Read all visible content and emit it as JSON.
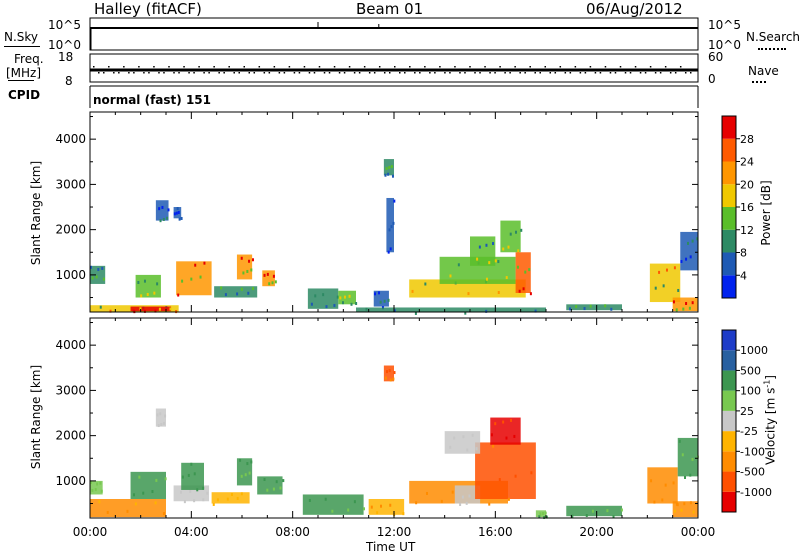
{
  "header": {
    "station": "Halley (fitACF)",
    "beam": "Beam 01",
    "date": "06/Aug/2012"
  },
  "sky_panel": {
    "left_label": "N.Sky",
    "right_label": "N.Search",
    "left_ticks": [
      "10^5",
      "10^0"
    ],
    "right_ticks": [
      "10^5",
      "10^0"
    ]
  },
  "freq_panel": {
    "left_label_1": "Freq.",
    "left_label_2": "[MHz]",
    "right_label": "Nave",
    "left_ticks": [
      "18",
      "8"
    ],
    "right_ticks": [
      "60",
      "0"
    ],
    "freq_value_mhz": 12,
    "nave_value": 26
  },
  "cpid_panel": {
    "label": "CPID",
    "mode_text": "normal (fast) 151"
  },
  "x_axis": {
    "title": "Time UT",
    "ticks": [
      "00:00",
      "04:00",
      "08:00",
      "12:00",
      "16:00",
      "20:00",
      "00:00"
    ]
  },
  "chart_data": [
    {
      "type": "heatmap",
      "name": "power",
      "xlabel": "Time UT",
      "ylabel": "Slant Range [km]",
      "x_range_hours": [
        0,
        24
      ],
      "ylim": [
        180,
        4600
      ],
      "y_ticks": [
        "1000",
        "2000",
        "3000",
        "4000"
      ],
      "colorbar": {
        "label": "Power [dB]",
        "ticks": [
          "4",
          "8",
          "12",
          "16",
          "20",
          "24",
          "28"
        ],
        "range": [
          0,
          32
        ],
        "colors": [
          "#0022ee",
          "#1e5ab4",
          "#2d8a64",
          "#5abe2a",
          "#f0c800",
          "#ff9600",
          "#ff5a00",
          "#e60000"
        ]
      },
      "regions": [
        {
          "t": [
            0.0,
            0.6
          ],
          "r": [
            800,
            1200
          ],
          "v": 10
        },
        {
          "t": [
            0.0,
            3.5
          ],
          "r": [
            180,
            330
          ],
          "v": 18
        },
        {
          "t": [
            1.6,
            3.2
          ],
          "r": [
            200,
            300
          ],
          "v": 28
        },
        {
          "t": [
            1.8,
            2.8
          ],
          "r": [
            500,
            1000
          ],
          "v": 14
        },
        {
          "t": [
            2.6,
            3.1
          ],
          "r": [
            2200,
            2650
          ],
          "v": 6
        },
        {
          "t": [
            3.3,
            3.6
          ],
          "r": [
            2250,
            2500
          ],
          "v": 5
        },
        {
          "t": [
            3.4,
            4.8
          ],
          "r": [
            550,
            1300
          ],
          "v": 22
        },
        {
          "t": [
            4.9,
            6.6
          ],
          "r": [
            500,
            750
          ],
          "v": 10
        },
        {
          "t": [
            5.8,
            6.4
          ],
          "r": [
            900,
            1450
          ],
          "v": 22
        },
        {
          "t": [
            6.8,
            7.3
          ],
          "r": [
            750,
            1100
          ],
          "v": 20
        },
        {
          "t": [
            8.6,
            9.8
          ],
          "r": [
            250,
            700
          ],
          "v": 8
        },
        {
          "t": [
            9.8,
            10.5
          ],
          "r": [
            350,
            650
          ],
          "v": 14
        },
        {
          "t": [
            11.6,
            12.0
          ],
          "r": [
            3200,
            3560
          ],
          "v": 9
        },
        {
          "t": [
            11.7,
            12.0
          ],
          "r": [
            1500,
            2700
          ],
          "v": 4
        },
        {
          "t": [
            11.2,
            11.8
          ],
          "r": [
            300,
            650
          ],
          "v": 6
        },
        {
          "t": [
            12.6,
            17.2
          ],
          "r": [
            500,
            900
          ],
          "v": 17
        },
        {
          "t": [
            13.8,
            16.8
          ],
          "r": [
            800,
            1400
          ],
          "v": 14
        },
        {
          "t": [
            15.0,
            16.0
          ],
          "r": [
            1200,
            1850
          ],
          "v": 12
        },
        {
          "t": [
            16.2,
            17.0
          ],
          "r": [
            1500,
            2200
          ],
          "v": 14
        },
        {
          "t": [
            16.8,
            17.4
          ],
          "r": [
            600,
            1500
          ],
          "v": 26
        },
        {
          "t": [
            10.5,
            18.0
          ],
          "r": [
            180,
            280
          ],
          "v": 8
        },
        {
          "t": [
            18.8,
            21.0
          ],
          "r": [
            220,
            350
          ],
          "v": 10
        },
        {
          "t": [
            22.1,
            23.3
          ],
          "r": [
            400,
            1250
          ],
          "v": 18
        },
        {
          "t": [
            23.3,
            24.0
          ],
          "r": [
            1100,
            1950
          ],
          "v": 6
        },
        {
          "t": [
            23.0,
            24.0
          ],
          "r": [
            200,
            500
          ],
          "v": 22
        }
      ]
    },
    {
      "type": "heatmap",
      "name": "velocity",
      "xlabel": "Time UT",
      "ylabel": "Slant Range [km]",
      "x_range_hours": [
        0,
        24
      ],
      "ylim": [
        180,
        4600
      ],
      "y_ticks": [
        "1000",
        "2000",
        "3000",
        "4000"
      ],
      "colorbar": {
        "label": "Velocity [m s-1]",
        "ticks": [
          "1000",
          "500",
          "100",
          "25",
          "-25",
          "-100",
          "-500",
          "-1000"
        ],
        "colors": [
          "#e60000",
          "#ff5000",
          "#ff8c00",
          "#ffb400",
          "#c8c8c8",
          "#78c850",
          "#3c9650",
          "#2860a0",
          "#1e3cc8"
        ]
      },
      "regions": [
        {
          "t": [
            0.0,
            0.5
          ],
          "r": [
            700,
            1000
          ],
          "v": 50
        },
        {
          "t": [
            0.0,
            3.0
          ],
          "r": [
            200,
            600
          ],
          "v": -150
        },
        {
          "t": [
            1.6,
            3.0
          ],
          "r": [
            600,
            1200
          ],
          "v": 150
        },
        {
          "t": [
            2.6,
            3.0
          ],
          "r": [
            2200,
            2600
          ],
          "v": 10
        },
        {
          "t": [
            3.3,
            4.7
          ],
          "r": [
            550,
            900
          ],
          "v": 10
        },
        {
          "t": [
            3.6,
            4.5
          ],
          "r": [
            800,
            1400
          ],
          "v": 200
        },
        {
          "t": [
            4.8,
            6.3
          ],
          "r": [
            500,
            750
          ],
          "v": -60
        },
        {
          "t": [
            5.8,
            6.4
          ],
          "r": [
            900,
            1500
          ],
          "v": 120
        },
        {
          "t": [
            6.6,
            7.6
          ],
          "r": [
            700,
            1100
          ],
          "v": 150
        },
        {
          "t": [
            8.4,
            10.8
          ],
          "r": [
            250,
            700
          ],
          "v": 150
        },
        {
          "t": [
            11.6,
            12.0
          ],
          "r": [
            3200,
            3550
          ],
          "v": -700
        },
        {
          "t": [
            11.0,
            12.4
          ],
          "r": [
            250,
            600
          ],
          "v": -80
        },
        {
          "t": [
            12.6,
            16.5
          ],
          "r": [
            500,
            1000
          ],
          "v": -200
        },
        {
          "t": [
            14.4,
            15.4
          ],
          "r": [
            500,
            900
          ],
          "v": 10
        },
        {
          "t": [
            15.2,
            17.6
          ],
          "r": [
            600,
            1850
          ],
          "v": -700
        },
        {
          "t": [
            15.8,
            17.0
          ],
          "r": [
            1800,
            2400
          ],
          "v": -1200
        },
        {
          "t": [
            14.0,
            15.4
          ],
          "r": [
            1600,
            2100
          ],
          "v": 8
        },
        {
          "t": [
            17.6,
            18.0
          ],
          "r": [
            200,
            350
          ],
          "v": 80
        },
        {
          "t": [
            18.8,
            21.0
          ],
          "r": [
            220,
            450
          ],
          "v": 120
        },
        {
          "t": [
            22.0,
            23.2
          ],
          "r": [
            500,
            1300
          ],
          "v": -250
        },
        {
          "t": [
            23.2,
            24.0
          ],
          "r": [
            1100,
            1950
          ],
          "v": 150
        },
        {
          "t": [
            23.0,
            24.0
          ],
          "r": [
            200,
            550
          ],
          "v": -150
        }
      ]
    }
  ]
}
